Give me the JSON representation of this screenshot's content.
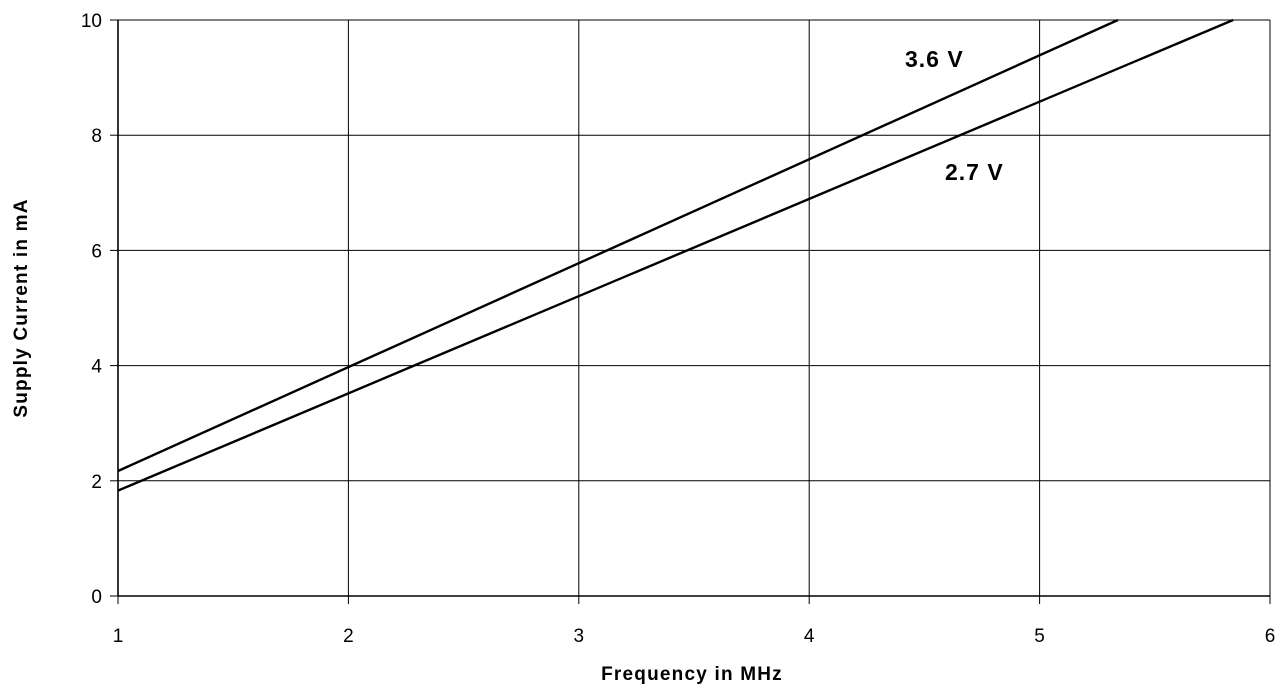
{
  "chart_data": {
    "type": "line",
    "xlabel": "Frequency in MHz",
    "ylabel": "Supply Current in mA",
    "xlim": [
      1,
      6
    ],
    "ylim": [
      0,
      10
    ],
    "x_ticks": [
      "1",
      "2",
      "3",
      "4",
      "5",
      "6"
    ],
    "y_ticks": [
      "0",
      "2",
      "4",
      "6",
      "8",
      "10"
    ],
    "grid": true,
    "legend": "inline labels",
    "line_color": "#000000",
    "series": [
      {
        "name": "3.6 V",
        "x": [
          1,
          5.34
        ],
        "y": [
          2.17,
          10
        ]
      },
      {
        "name": "2.7 V",
        "x": [
          1,
          5.84
        ],
        "y": [
          1.83,
          10
        ]
      }
    ]
  }
}
